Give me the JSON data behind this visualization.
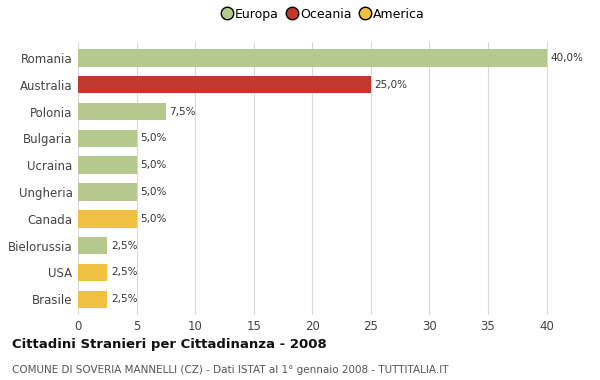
{
  "categories": [
    "Romania",
    "Australia",
    "Polonia",
    "Bulgaria",
    "Ucraina",
    "Ungheria",
    "Canada",
    "Bielorussia",
    "USA",
    "Brasile"
  ],
  "values": [
    40.0,
    25.0,
    7.5,
    5.0,
    5.0,
    5.0,
    5.0,
    2.5,
    2.5,
    2.5
  ],
  "colors": [
    "#b5c98e",
    "#c0392b",
    "#b5c98e",
    "#b5c98e",
    "#b5c98e",
    "#b5c98e",
    "#f0c040",
    "#b5c98e",
    "#f0c040",
    "#f0c040"
  ],
  "labels": [
    "40,0%",
    "25,0%",
    "7,5%",
    "5,0%",
    "5,0%",
    "5,0%",
    "5,0%",
    "2,5%",
    "2,5%",
    "2,5%"
  ],
  "legend": [
    {
      "label": "Europa",
      "color": "#b5c98e"
    },
    {
      "label": "Oceania",
      "color": "#c0392b"
    },
    {
      "label": "America",
      "color": "#f0c040"
    }
  ],
  "xlim": [
    0,
    42
  ],
  "xticks": [
    0,
    5,
    10,
    15,
    20,
    25,
    30,
    35,
    40
  ],
  "title": "Cittadini Stranieri per Cittadinanza - 2008",
  "subtitle": "COMUNE DI SOVERIA MANNELLI (CZ) - Dati ISTAT al 1° gennaio 2008 - TUTTITALIA.IT",
  "bg_color": "#ffffff",
  "grid_color": "#d8d8d8",
  "bar_height": 0.65
}
